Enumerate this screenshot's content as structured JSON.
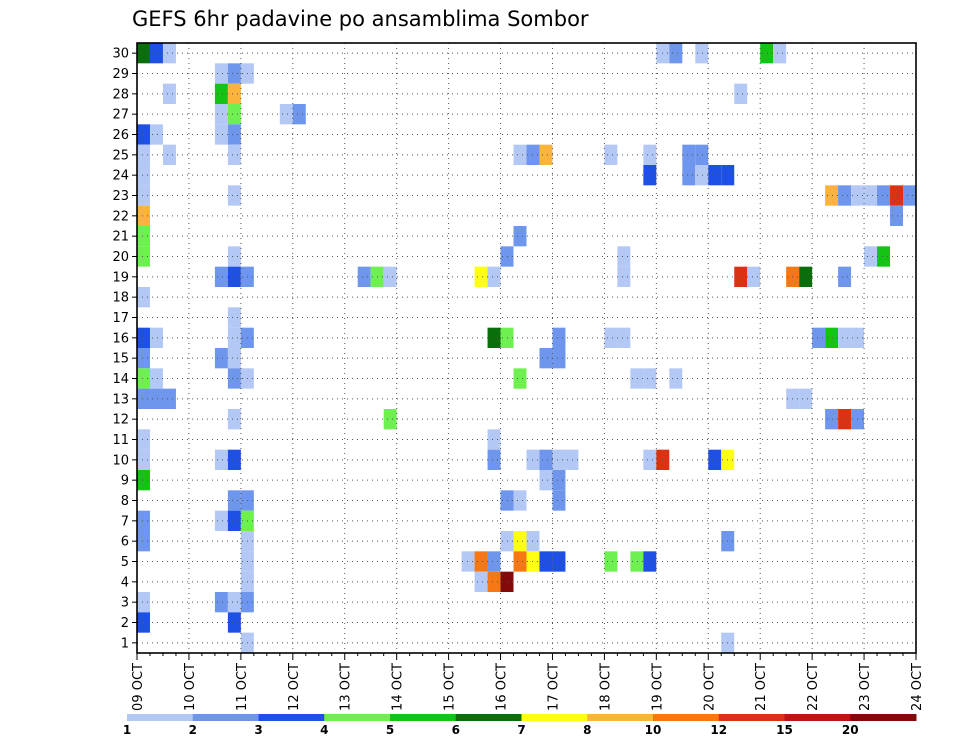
{
  "chart_data": {
    "type": "heatmap",
    "title": "GEFS 6hr padavine po ansamblima Sombor",
    "x_tick_labels": [
      "09 OCT",
      "10 OCT",
      "11 OCT",
      "12 OCT",
      "13 OCT",
      "14 OCT",
      "15 OCT",
      "16 OCT",
      "17 OCT",
      "18 OCT",
      "19 OCT",
      "20 OCT",
      "21 OCT",
      "22 OCT",
      "23 OCT",
      "24 OCT"
    ],
    "y_tick_labels": [
      "1",
      "2",
      "3",
      "4",
      "5",
      "6",
      "7",
      "8",
      "9",
      "10",
      "11",
      "12",
      "13",
      "14",
      "15",
      "16",
      "17",
      "18",
      "19",
      "20",
      "21",
      "22",
      "23",
      "24",
      "25",
      "26",
      "27",
      "28",
      "29",
      "30"
    ],
    "xlim": [
      0,
      60
    ],
    "ylim": [
      0,
      30
    ],
    "grid": true,
    "colorbar": {
      "labels": [
        "1",
        "2",
        "3",
        "4",
        "5",
        "6",
        "7",
        "8",
        "10",
        "12",
        "15",
        "20"
      ],
      "colors": [
        "#b4c8f5",
        "#6e96ec",
        "#1e50e6",
        "#6ef050",
        "#14c314",
        "#0a6e0a",
        "#ffff14",
        "#fab43c",
        "#f57814",
        "#dc3214",
        "#be1414",
        "#820a0a"
      ],
      "legend_placement": "bottom"
    },
    "cells": [
      {
        "x": 0,
        "y": 30,
        "v": 6
      },
      {
        "x": 1,
        "y": 30,
        "v": 3
      },
      {
        "x": 2,
        "y": 30,
        "v": 1
      },
      {
        "x": 40,
        "y": 30,
        "v": 1
      },
      {
        "x": 41,
        "y": 30,
        "v": 2
      },
      {
        "x": 43,
        "y": 30,
        "v": 1
      },
      {
        "x": 48,
        "y": 30,
        "v": 5
      },
      {
        "x": 49,
        "y": 30,
        "v": 1
      },
      {
        "x": 6,
        "y": 29,
        "v": 1
      },
      {
        "x": 7,
        "y": 29,
        "v": 2
      },
      {
        "x": 8,
        "y": 29,
        "v": 1
      },
      {
        "x": 2,
        "y": 28,
        "v": 1
      },
      {
        "x": 6,
        "y": 28,
        "v": 5
      },
      {
        "x": 7,
        "y": 28,
        "v": 8
      },
      {
        "x": 46,
        "y": 28,
        "v": 1
      },
      {
        "x": 6,
        "y": 27,
        "v": 1
      },
      {
        "x": 7,
        "y": 27,
        "v": 4
      },
      {
        "x": 11,
        "y": 27,
        "v": 1
      },
      {
        "x": 12,
        "y": 27,
        "v": 2
      },
      {
        "x": 0,
        "y": 26,
        "v": 3
      },
      {
        "x": 1,
        "y": 26,
        "v": 1
      },
      {
        "x": 6,
        "y": 26,
        "v": 1
      },
      {
        "x": 7,
        "y": 26,
        "v": 2
      },
      {
        "x": 0,
        "y": 25,
        "v": 1
      },
      {
        "x": 2,
        "y": 25,
        "v": 1
      },
      {
        "x": 7,
        "y": 25,
        "v": 1
      },
      {
        "x": 29,
        "y": 25,
        "v": 1
      },
      {
        "x": 30,
        "y": 25,
        "v": 2
      },
      {
        "x": 31,
        "y": 25,
        "v": 8
      },
      {
        "x": 36,
        "y": 25,
        "v": 1
      },
      {
        "x": 39,
        "y": 25,
        "v": 1
      },
      {
        "x": 42,
        "y": 25,
        "v": 2
      },
      {
        "x": 43,
        "y": 25,
        "v": 2
      },
      {
        "x": 0,
        "y": 24,
        "v": 1
      },
      {
        "x": 39,
        "y": 24,
        "v": 3
      },
      {
        "x": 42,
        "y": 24,
        "v": 2
      },
      {
        "x": 43,
        "y": 24,
        "v": 1
      },
      {
        "x": 44,
        "y": 24,
        "v": 3
      },
      {
        "x": 45,
        "y": 24,
        "v": 3
      },
      {
        "x": 0,
        "y": 23,
        "v": 1
      },
      {
        "x": 7,
        "y": 23,
        "v": 1
      },
      {
        "x": 53,
        "y": 23,
        "v": 8
      },
      {
        "x": 54,
        "y": 23,
        "v": 2
      },
      {
        "x": 55,
        "y": 23,
        "v": 1
      },
      {
        "x": 56,
        "y": 23,
        "v": 1
      },
      {
        "x": 57,
        "y": 23,
        "v": 2
      },
      {
        "x": 58,
        "y": 23,
        "v": 12
      },
      {
        "x": 59,
        "y": 23,
        "v": 2
      },
      {
        "x": 0,
        "y": 22,
        "v": 8
      },
      {
        "x": 58,
        "y": 22,
        "v": 2
      },
      {
        "x": 0,
        "y": 21,
        "v": 4
      },
      {
        "x": 29,
        "y": 21,
        "v": 2
      },
      {
        "x": 0,
        "y": 20,
        "v": 4
      },
      {
        "x": 7,
        "y": 20,
        "v": 1
      },
      {
        "x": 28,
        "y": 20,
        "v": 2
      },
      {
        "x": 37,
        "y": 20,
        "v": 1
      },
      {
        "x": 56,
        "y": 20,
        "v": 1
      },
      {
        "x": 57,
        "y": 20,
        "v": 5
      },
      {
        "x": 6,
        "y": 19,
        "v": 2
      },
      {
        "x": 7,
        "y": 19,
        "v": 3
      },
      {
        "x": 8,
        "y": 19,
        "v": 2
      },
      {
        "x": 17,
        "y": 19,
        "v": 2
      },
      {
        "x": 18,
        "y": 19,
        "v": 4
      },
      {
        "x": 19,
        "y": 19,
        "v": 1
      },
      {
        "x": 26,
        "y": 19,
        "v": 7
      },
      {
        "x": 27,
        "y": 19,
        "v": 1
      },
      {
        "x": 37,
        "y": 19,
        "v": 1
      },
      {
        "x": 46,
        "y": 19,
        "v": 12
      },
      {
        "x": 47,
        "y": 19,
        "v": 1
      },
      {
        "x": 50,
        "y": 19,
        "v": 10
      },
      {
        "x": 51,
        "y": 19,
        "v": 6
      },
      {
        "x": 54,
        "y": 19,
        "v": 2
      },
      {
        "x": 0,
        "y": 18,
        "v": 1
      },
      {
        "x": 7,
        "y": 17,
        "v": 1
      },
      {
        "x": 0,
        "y": 16,
        "v": 3
      },
      {
        "x": 1,
        "y": 16,
        "v": 1
      },
      {
        "x": 7,
        "y": 16,
        "v": 1
      },
      {
        "x": 8,
        "y": 16,
        "v": 2
      },
      {
        "x": 27,
        "y": 16,
        "v": 6
      },
      {
        "x": 28,
        "y": 16,
        "v": 4
      },
      {
        "x": 32,
        "y": 16,
        "v": 2
      },
      {
        "x": 36,
        "y": 16,
        "v": 1
      },
      {
        "x": 37,
        "y": 16,
        "v": 1
      },
      {
        "x": 52,
        "y": 16,
        "v": 2
      },
      {
        "x": 53,
        "y": 16,
        "v": 5
      },
      {
        "x": 54,
        "y": 16,
        "v": 1
      },
      {
        "x": 55,
        "y": 16,
        "v": 1
      },
      {
        "x": 0,
        "y": 15,
        "v": 2
      },
      {
        "x": 6,
        "y": 15,
        "v": 2
      },
      {
        "x": 7,
        "y": 15,
        "v": 1
      },
      {
        "x": 31,
        "y": 15,
        "v": 2
      },
      {
        "x": 32,
        "y": 15,
        "v": 2
      },
      {
        "x": 0,
        "y": 14,
        "v": 4
      },
      {
        "x": 1,
        "y": 14,
        "v": 1
      },
      {
        "x": 7,
        "y": 14,
        "v": 2
      },
      {
        "x": 8,
        "y": 14,
        "v": 1
      },
      {
        "x": 29,
        "y": 14,
        "v": 4
      },
      {
        "x": 38,
        "y": 14,
        "v": 1
      },
      {
        "x": 39,
        "y": 14,
        "v": 1
      },
      {
        "x": 41,
        "y": 14,
        "v": 1
      },
      {
        "x": 0,
        "y": 13,
        "v": 2
      },
      {
        "x": 1,
        "y": 13,
        "v": 2
      },
      {
        "x": 2,
        "y": 13,
        "v": 2
      },
      {
        "x": 50,
        "y": 13,
        "v": 1
      },
      {
        "x": 51,
        "y": 13,
        "v": 1
      },
      {
        "x": 7,
        "y": 12,
        "v": 1
      },
      {
        "x": 19,
        "y": 12,
        "v": 4
      },
      {
        "x": 53,
        "y": 12,
        "v": 2
      },
      {
        "x": 54,
        "y": 12,
        "v": 12
      },
      {
        "x": 55,
        "y": 12,
        "v": 2
      },
      {
        "x": 0,
        "y": 11,
        "v": 1
      },
      {
        "x": 27,
        "y": 11,
        "v": 1
      },
      {
        "x": 0,
        "y": 10,
        "v": 1
      },
      {
        "x": 6,
        "y": 10,
        "v": 1
      },
      {
        "x": 7,
        "y": 10,
        "v": 3
      },
      {
        "x": 27,
        "y": 10,
        "v": 2
      },
      {
        "x": 30,
        "y": 10,
        "v": 1
      },
      {
        "x": 31,
        "y": 10,
        "v": 2
      },
      {
        "x": 32,
        "y": 10,
        "v": 1
      },
      {
        "x": 33,
        "y": 10,
        "v": 1
      },
      {
        "x": 39,
        "y": 10,
        "v": 1
      },
      {
        "x": 40,
        "y": 10,
        "v": 12
      },
      {
        "x": 44,
        "y": 10,
        "v": 3
      },
      {
        "x": 45,
        "y": 10,
        "v": 7
      },
      {
        "x": 0,
        "y": 9,
        "v": 5
      },
      {
        "x": 31,
        "y": 9,
        "v": 1
      },
      {
        "x": 32,
        "y": 9,
        "v": 2
      },
      {
        "x": 7,
        "y": 8,
        "v": 2
      },
      {
        "x": 8,
        "y": 8,
        "v": 2
      },
      {
        "x": 28,
        "y": 8,
        "v": 2
      },
      {
        "x": 29,
        "y": 8,
        "v": 1
      },
      {
        "x": 32,
        "y": 8,
        "v": 2
      },
      {
        "x": 0,
        "y": 7,
        "v": 2
      },
      {
        "x": 6,
        "y": 7,
        "v": 1
      },
      {
        "x": 7,
        "y": 7,
        "v": 3
      },
      {
        "x": 8,
        "y": 7,
        "v": 4
      },
      {
        "x": 0,
        "y": 6,
        "v": 2
      },
      {
        "x": 8,
        "y": 6,
        "v": 1
      },
      {
        "x": 28,
        "y": 6,
        "v": 1
      },
      {
        "x": 29,
        "y": 6,
        "v": 7
      },
      {
        "x": 30,
        "y": 6,
        "v": 1
      },
      {
        "x": 45,
        "y": 6,
        "v": 2
      },
      {
        "x": 8,
        "y": 5,
        "v": 1
      },
      {
        "x": 25,
        "y": 5,
        "v": 1
      },
      {
        "x": 26,
        "y": 5,
        "v": 10
      },
      {
        "x": 27,
        "y": 5,
        "v": 2
      },
      {
        "x": 29,
        "y": 5,
        "v": 10
      },
      {
        "x": 30,
        "y": 5,
        "v": 7
      },
      {
        "x": 31,
        "y": 5,
        "v": 3
      },
      {
        "x": 32,
        "y": 5,
        "v": 3
      },
      {
        "x": 36,
        "y": 5,
        "v": 4
      },
      {
        "x": 38,
        "y": 5,
        "v": 4
      },
      {
        "x": 39,
        "y": 5,
        "v": 3
      },
      {
        "x": 8,
        "y": 4,
        "v": 1
      },
      {
        "x": 26,
        "y": 4,
        "v": 1
      },
      {
        "x": 27,
        "y": 4,
        "v": 10
      },
      {
        "x": 28,
        "y": 4,
        "v": 20
      },
      {
        "x": 0,
        "y": 3,
        "v": 1
      },
      {
        "x": 6,
        "y": 3,
        "v": 2
      },
      {
        "x": 7,
        "y": 3,
        "v": 1
      },
      {
        "x": 8,
        "y": 3,
        "v": 2
      },
      {
        "x": 0,
        "y": 2,
        "v": 3
      },
      {
        "x": 7,
        "y": 2,
        "v": 3
      },
      {
        "x": 8,
        "y": 1,
        "v": 1
      },
      {
        "x": 45,
        "y": 1,
        "v": 1
      }
    ]
  }
}
